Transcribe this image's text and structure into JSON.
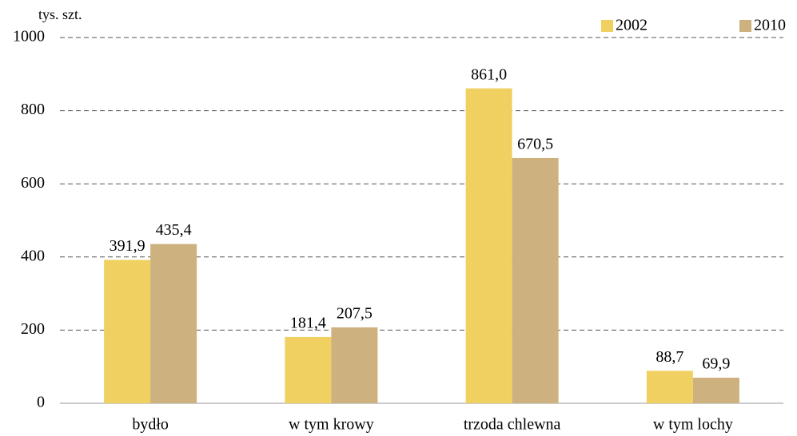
{
  "chart_data": {
    "type": "bar",
    "y_axis_label": "tys. szt.",
    "categories": [
      "bydło",
      "w tym krowy",
      "trzoda chlewna",
      "w tym lochy"
    ],
    "series": [
      {
        "name": "2002",
        "color": "#f0d060",
        "values": [
          391.9,
          181.4,
          861.0,
          88.7
        ],
        "value_labels": [
          "391,9",
          "181,4",
          "861,0",
          "88,7"
        ]
      },
      {
        "name": "2010",
        "color": "#cdb17e",
        "values": [
          435.4,
          207.5,
          670.5,
          69.9
        ],
        "value_labels": [
          "435,4",
          "207,5",
          "670,5",
          "69,9"
        ]
      }
    ],
    "ylim": [
      0,
      1000
    ],
    "yticks": [
      0,
      200,
      400,
      600,
      800,
      1000
    ],
    "grid": true,
    "legend": "top-right"
  }
}
